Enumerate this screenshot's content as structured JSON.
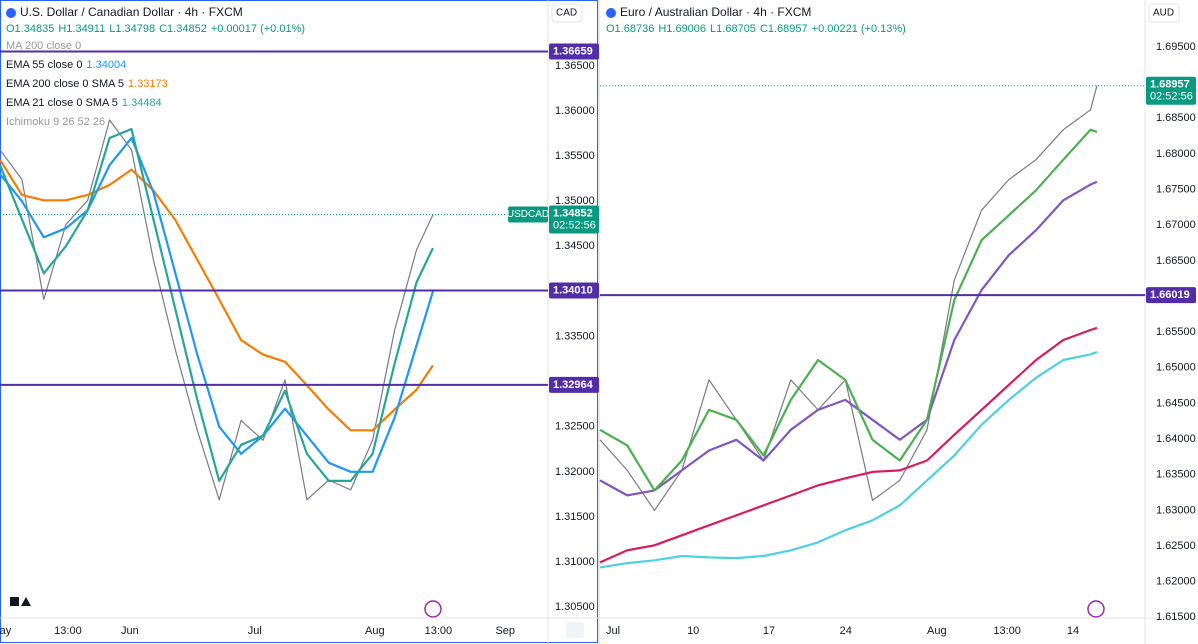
{
  "chart_data": [
    {
      "type": "line",
      "title": "U.S. Dollar / Canadian Dollar · 4h · FXCM",
      "currency": "CAD",
      "ohlc": [
        "O1.34835",
        "H1.34911",
        "L1.34798",
        "C1.34852",
        "+0.00017 (+0.01%)"
      ],
      "indicators": [
        {
          "name": "MA 200 close 0",
          "color": "#9598a1"
        },
        {
          "name": "EMA 55 close 0",
          "value_label": "1.34004",
          "color": "#2196f3"
        },
        {
          "name": "EMA 200 close 0 SMA 5",
          "value_label": "1.33173",
          "color": "#f57c00"
        },
        {
          "name": "EMA 21 close 0 SMA 5",
          "value_label": "1.34484",
          "color": "#26a69a"
        },
        {
          "name": "Ichimoku 9 26 52 26",
          "color": "#9598a1"
        }
      ],
      "x": [
        0,
        4,
        8,
        12,
        16,
        20,
        24,
        28,
        32,
        36,
        40,
        44,
        48,
        52,
        56,
        60,
        64,
        68,
        72,
        76,
        79
      ],
      "xlim": [
        0,
        100
      ],
      "xticks": [
        {
          "value": 1,
          "label": "ay"
        },
        {
          "value": 12.4,
          "label": "13:00"
        },
        {
          "value": 23.7,
          "label": "Jun"
        },
        {
          "value": 46.5,
          "label": "Jul"
        },
        {
          "value": 68.4,
          "label": "Aug"
        },
        {
          "value": 80,
          "label": "13:00"
        },
        {
          "value": 92.2,
          "label": "Sep"
        }
      ],
      "series": [
        {
          "color": "#787b86",
          "values": [
            1.3557,
            1.3524,
            1.3391,
            1.3474,
            1.3501,
            1.359,
            1.3557,
            1.3435,
            1.3335,
            1.3246,
            1.3169,
            1.3257,
            1.3235,
            1.3302,
            1.3169,
            1.3191,
            1.318,
            1.3235,
            1.3357,
            1.3446,
            1.3485
          ]
        },
        {
          "color": "#f57c00",
          "values": [
            1.3546,
            1.3507,
            1.3501,
            1.3501,
            1.3507,
            1.3518,
            1.3535,
            1.3512,
            1.3479,
            1.3435,
            1.3391,
            1.3346,
            1.333,
            1.3322,
            1.3296,
            1.3269,
            1.3246,
            1.3246,
            1.3269,
            1.3291,
            1.3318
          ]
        },
        {
          "color": "#2196f3",
          "values": [
            1.353,
            1.35,
            1.346,
            1.347,
            1.349,
            1.354,
            1.357,
            1.351,
            1.342,
            1.333,
            1.325,
            1.322,
            1.324,
            1.327,
            1.324,
            1.321,
            1.32,
            1.32,
            1.326,
            1.334,
            1.34
          ]
        },
        {
          "color": "#26a69a",
          "values": [
            1.354,
            1.348,
            1.342,
            1.345,
            1.349,
            1.357,
            1.358,
            1.348,
            1.338,
            1.328,
            1.319,
            1.323,
            1.324,
            1.329,
            1.322,
            1.319,
            1.319,
            1.322,
            1.332,
            1.341,
            1.3448
          ]
        }
      ],
      "ylim": [
        1.3038,
        1.3723
      ],
      "yticks": [
        {
          "value": 1.305,
          "label": "1.30500"
        },
        {
          "value": 1.31,
          "label": "1.31000"
        },
        {
          "value": 1.315,
          "label": "1.31500"
        },
        {
          "value": 1.32,
          "label": "1.32000"
        },
        {
          "value": 1.325,
          "label": "1.32500"
        },
        {
          "value": 1.33,
          "label": "1.33000"
        },
        {
          "value": 1.335,
          "label": "1.33500"
        },
        {
          "value": 1.345,
          "label": "1.34500"
        },
        {
          "value": 1.35,
          "label": "1.35000"
        },
        {
          "value": 1.355,
          "label": "1.35500"
        },
        {
          "value": 1.36,
          "label": "1.36000"
        },
        {
          "value": 1.365,
          "label": "1.36500"
        }
      ],
      "level_color": "#512da8",
      "levels": [
        {
          "value": 1.36659,
          "label": "1.36659"
        },
        {
          "value": 1.3401,
          "label": "1.34010"
        },
        {
          "value": 1.32964,
          "label": "1.32964"
        }
      ],
      "last": {
        "value": 1.34852,
        "label": "1.34852",
        "symbol": "USDCAD",
        "countdown": "02:52:56",
        "color": "#089981"
      }
    },
    {
      "type": "line",
      "title": "Euro / Australian Dollar · 4h · FXCM",
      "currency": "AUD",
      "ohlc": [
        "O1.68736",
        "H1.69006",
        "L1.68705",
        "C1.68957",
        "+0.00221 (+0.13%)"
      ],
      "x": [
        0,
        5,
        10,
        15,
        20,
        25,
        30,
        35,
        40,
        45,
        50,
        55,
        60,
        65,
        70,
        75,
        80,
        85,
        90,
        91.2
      ],
      "xlim": [
        0,
        100
      ],
      "xticks": [
        {
          "value": 2.4,
          "label": "Jul"
        },
        {
          "value": 17.1,
          "label": "10"
        },
        {
          "value": 31,
          "label": "17"
        },
        {
          "value": 45.1,
          "label": "24"
        },
        {
          "value": 61.8,
          "label": "Aug"
        },
        {
          "value": 74.7,
          "label": "13:00"
        },
        {
          "value": 86.8,
          "label": "14"
        }
      ],
      "series": [
        {
          "color": "#787b86",
          "values": [
            1.6399,
            1.6356,
            1.63,
            1.6356,
            1.6483,
            1.6427,
            1.637,
            1.6483,
            1.6441,
            1.6483,
            1.6314,
            1.6342,
            1.6413,
            1.6623,
            1.6721,
            1.6764,
            1.6792,
            1.6834,
            1.6862,
            1.6896
          ]
        },
        {
          "color": "#4dd0e1",
          "values": [
            1.622,
            1.6226,
            1.623,
            1.6236,
            1.6234,
            1.6233,
            1.6236,
            1.6244,
            1.6255,
            1.6272,
            1.6286,
            1.6307,
            1.6342,
            1.6377,
            1.642,
            1.6455,
            1.6486,
            1.6511,
            1.6519,
            1.6522
          ]
        },
        {
          "color": "#d81b60",
          "values": [
            1.6227,
            1.6244,
            1.6251,
            1.6265,
            1.6279,
            1.6293,
            1.6307,
            1.6321,
            1.6335,
            1.6345,
            1.6354,
            1.6356,
            1.637,
            1.6406,
            1.6441,
            1.6476,
            1.6511,
            1.6539,
            1.6553,
            1.6556
          ]
        },
        {
          "color": "#7e57c2",
          "values": [
            1.6342,
            1.6321,
            1.6328,
            1.6356,
            1.6384,
            1.6399,
            1.637,
            1.6413,
            1.6441,
            1.6455,
            1.6427,
            1.6399,
            1.6427,
            1.6539,
            1.6609,
            1.6658,
            1.6693,
            1.6735,
            1.6757,
            1.6761
          ]
        },
        {
          "color": "#4caf50",
          "values": [
            1.6413,
            1.6391,
            1.6328,
            1.637,
            1.6441,
            1.6427,
            1.6377,
            1.6455,
            1.6511,
            1.6483,
            1.6399,
            1.637,
            1.6427,
            1.6595,
            1.6679,
            1.6714,
            1.6749,
            1.6792,
            1.6834,
            1.6831
          ]
        }
      ],
      "ylim": [
        1.6149,
        1.7016
      ],
      "yticks": [
        {
          "value": 1.615,
          "label": "1.61500"
        },
        {
          "value": 1.62,
          "label": "1.62000"
        },
        {
          "value": 1.625,
          "label": "1.62500"
        },
        {
          "value": 1.63,
          "label": "1.63000"
        },
        {
          "value": 1.635,
          "label": "1.63500"
        },
        {
          "value": 1.64,
          "label": "1.64000"
        },
        {
          "value": 1.645,
          "label": "1.64500"
        },
        {
          "value": 1.65,
          "label": "1.65000"
        },
        {
          "value": 1.655,
          "label": "1.65500"
        },
        {
          "value": 1.665,
          "label": "1.66500"
        },
        {
          "value": 1.67,
          "label": "1.67000"
        },
        {
          "value": 1.675,
          "label": "1.67500"
        },
        {
          "value": 1.68,
          "label": "1.68000"
        },
        {
          "value": 1.685,
          "label": "1.68500"
        },
        {
          "value": 1.695,
          "label": "1.69500"
        }
      ],
      "level_color": "#512da8",
      "levels": [
        {
          "value": 1.66019,
          "label": "1.66019"
        }
      ],
      "last": {
        "value": 1.68957,
        "label": "1.68957",
        "countdown": "02:52:56",
        "color": "#089981"
      }
    }
  ]
}
